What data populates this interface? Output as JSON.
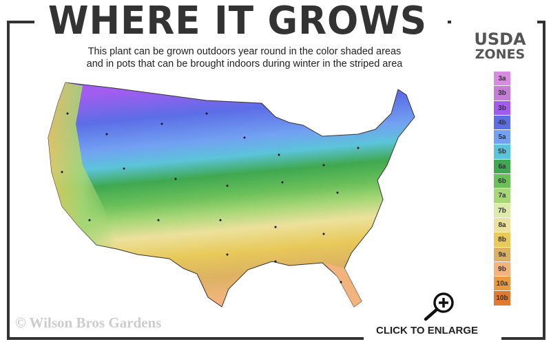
{
  "title": "WHERE IT GROWS",
  "subtitle_line1": "This plant can be grown outdoors year round in the color shaded areas",
  "subtitle_line2": "and in pots that can be brought indoors during winter in the striped area",
  "legend": {
    "title_line1": "USDA",
    "title_line2": "ZONES",
    "zones": [
      {
        "label": "3a",
        "color": "#d98be2"
      },
      {
        "label": "3b",
        "color": "#c47ed8"
      },
      {
        "label": "3b",
        "color": "#a35cf0"
      },
      {
        "label": "4b",
        "color": "#5b6ee6"
      },
      {
        "label": "5a",
        "color": "#72a0f2"
      },
      {
        "label": "5b",
        "color": "#5cc4da"
      },
      {
        "label": "6a",
        "color": "#3fa850"
      },
      {
        "label": "6b",
        "color": "#6cc05a"
      },
      {
        "label": "7a",
        "color": "#a6d676"
      },
      {
        "label": "7b",
        "color": "#dcebaa"
      },
      {
        "label": "8a",
        "color": "#ece19c"
      },
      {
        "label": "8b",
        "color": "#e8c95a"
      },
      {
        "label": "9a",
        "color": "#dcb262"
      },
      {
        "label": "9b",
        "color": "#f2b47c"
      },
      {
        "label": "10a",
        "color": "#ec9a40"
      },
      {
        "label": "10b",
        "color": "#e07a30"
      }
    ]
  },
  "watermark": "© Wilson Bros Gardens",
  "enlarge_label": "CLICK TO ENLARGE",
  "icons": {
    "enlarge": "magnifier-plus-icon"
  }
}
